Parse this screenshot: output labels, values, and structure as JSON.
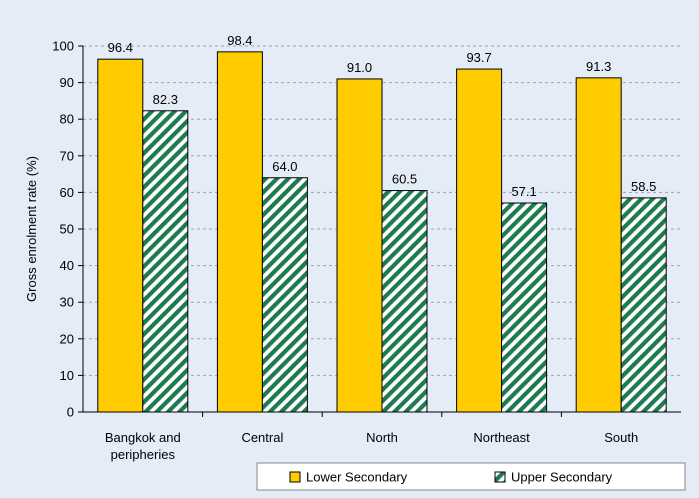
{
  "chart_data": {
    "type": "bar",
    "ylabel": "Gross enrolment rate (%)",
    "xlabel": "",
    "ylim": [
      0,
      100
    ],
    "yticks": [
      0,
      10,
      20,
      30,
      40,
      50,
      60,
      70,
      80,
      90,
      100
    ],
    "grid": "horizontal dashed",
    "legend_position": "bottom-right",
    "categories": [
      [
        "Bangkok and",
        "peripheries"
      ],
      [
        "Central"
      ],
      [
        "North"
      ],
      [
        "Northeast"
      ],
      [
        "South"
      ]
    ],
    "series": [
      {
        "name": "Lower Secondary",
        "values": [
          96.4,
          98.4,
          91.0,
          93.7,
          91.3
        ],
        "labels": [
          "96.4",
          "98.4",
          "91.0",
          "93.7",
          "91.3"
        ],
        "color": "#ffcc00",
        "pattern": "solid"
      },
      {
        "name": "Upper Secondary",
        "values": [
          82.3,
          64.0,
          60.5,
          57.1,
          58.5
        ],
        "labels": [
          "82.3",
          "64.0",
          "60.5",
          "57.1",
          "58.5"
        ],
        "color": "#1f7a4f",
        "pattern": "diagonal-stripes"
      }
    ]
  }
}
